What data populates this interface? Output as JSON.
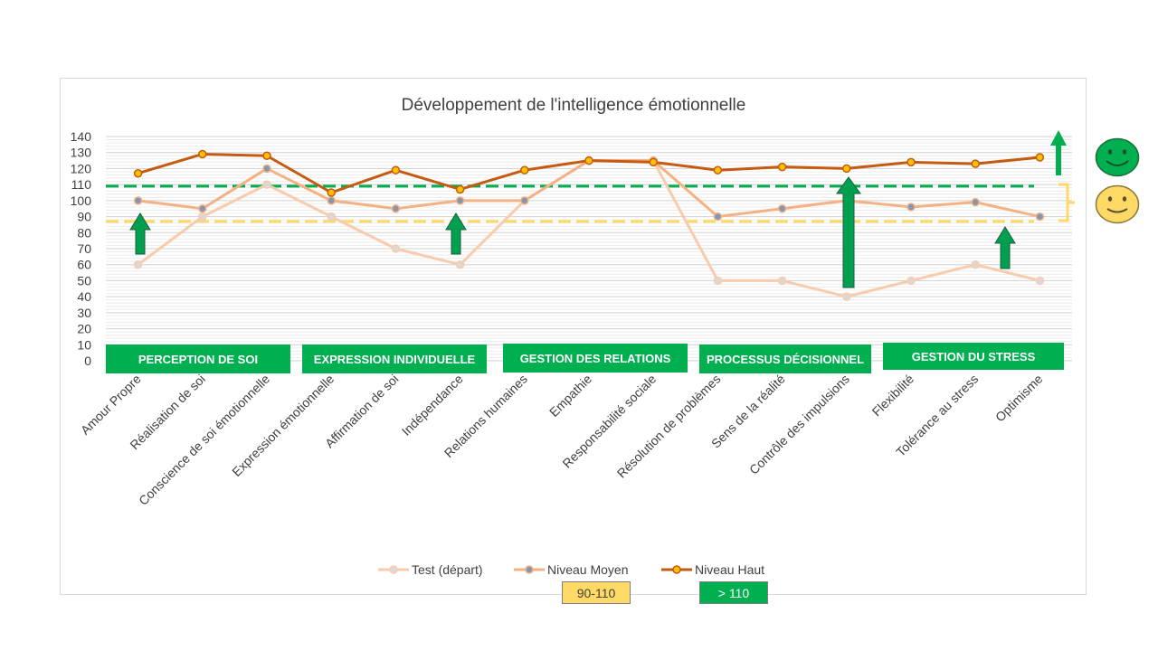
{
  "chart_data": {
    "type": "line",
    "title": "Développement de l'intelligence émotionnelle",
    "categories": [
      "Amour Propre",
      "Réalisation de soi",
      "Conscience de soi émotionnelle",
      "Expression émotionnelle",
      "Affirmation de soi",
      "Indépendance",
      "Relations humaines",
      "Empathie",
      "Responsabilité sociale",
      "Résolution de problèmes",
      "Sens de la réalité",
      "Contrôle des impulsions",
      "Flexibilité",
      "Tolérance au stress",
      "Optimisme"
    ],
    "series": [
      {
        "name": "Test (départ)",
        "color": "#f8cbad",
        "marker": "#d9d9d9",
        "values": [
          60,
          90,
          110,
          90,
          70,
          60,
          100,
          125,
          125,
          50,
          50,
          40,
          50,
          60,
          50
        ]
      },
      {
        "name": "Niveau Moyen",
        "color": "#f4b183",
        "marker": "#8497b0",
        "values": [
          100,
          95,
          120,
          100,
          95,
          100,
          100,
          125,
          125,
          90,
          95,
          100,
          96,
          99,
          90
        ]
      },
      {
        "name": "Niveau Haut",
        "color": "#c55a11",
        "marker": "#ffc000",
        "values": [
          117,
          129,
          128,
          105,
          119,
          107,
          119,
          125,
          124,
          119,
          121,
          120,
          124,
          123,
          127
        ]
      }
    ],
    "ylim": [
      0,
      140
    ],
    "yticks": [
      0,
      10,
      20,
      30,
      40,
      50,
      60,
      70,
      80,
      90,
      100,
      110,
      120,
      130,
      140
    ],
    "reference_lines": [
      {
        "value": 109,
        "color": "#00b050",
        "style": "dashed"
      },
      {
        "value": 87,
        "color": "#ffd966",
        "style": "dashed"
      }
    ],
    "grid": true,
    "legend_position": "bottom"
  },
  "groups": [
    {
      "label": "PERCEPTION DE SOI"
    },
    {
      "label": "EXPRESSION INDIVIDUELLE"
    },
    {
      "label": "GESTION DES RELATIONS"
    },
    {
      "label": "PROCESSUS DÉCISIONNEL"
    },
    {
      "label": "GESTION DU STRESS"
    }
  ],
  "legend": {
    "series": [
      "Test (départ)",
      "Niveau Moyen",
      "Niveau Haut"
    ],
    "mid_range": "90-110",
    "high_range": "> 110"
  },
  "colors": {
    "green": "#00b050",
    "dark_green_arrow": "#00a050",
    "yellow": "#ffd966",
    "grid": "#d9d9d9"
  },
  "icons": [
    "happy-smiley-green-icon",
    "happy-smiley-yellow-icon",
    "up-arrow-icon"
  ]
}
